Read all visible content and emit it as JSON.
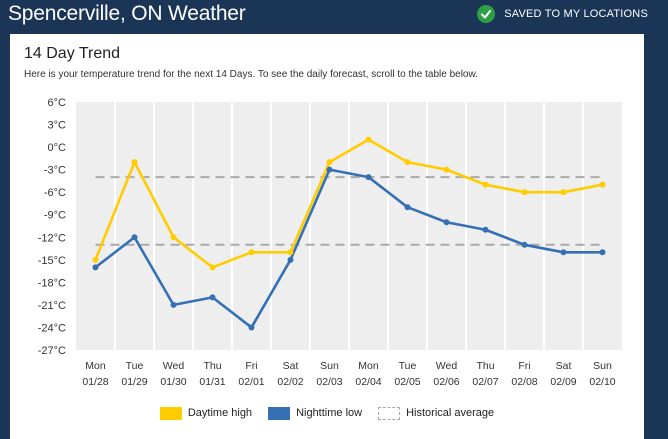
{
  "header": {
    "title": "Spencerville, ON Weather",
    "saved_label": "SAVED TO MY LOCATIONS"
  },
  "card": {
    "title": "14 Day Trend",
    "subtitle": "Here is your temperature trend for the next 14 Days. To see the daily forecast, scroll to the table below."
  },
  "colors": {
    "header_bg": "#1b3556",
    "daytime": "#ffcc00",
    "nighttime": "#3670b4",
    "historical": "#aaaaaa",
    "plot_bg": "#eeeeee",
    "check": "#2e9e44"
  },
  "chart_data": {
    "type": "line",
    "ylim": [
      -27,
      6
    ],
    "yticks": [
      "6°C",
      "3°C",
      "0°C",
      "-3°C",
      "-6°C",
      "-9°C",
      "-12°C",
      "-15°C",
      "-18°C",
      "-21°C",
      "-24°C",
      "-27°C"
    ],
    "ytick_values": [
      6,
      3,
      0,
      -3,
      -6,
      -9,
      -12,
      -15,
      -18,
      -21,
      -24,
      -27
    ],
    "days": [
      "Mon",
      "Tue",
      "Wed",
      "Thu",
      "Fri",
      "Sat",
      "Sun",
      "Mon",
      "Tue",
      "Wed",
      "Thu",
      "Fri",
      "Sat",
      "Sun"
    ],
    "dates": [
      "01/28",
      "01/29",
      "01/30",
      "01/31",
      "02/01",
      "02/02",
      "02/03",
      "02/04",
      "02/05",
      "02/06",
      "02/07",
      "02/08",
      "02/09",
      "02/10"
    ],
    "series": [
      {
        "name": "Daytime high",
        "values": [
          -15,
          -2,
          -12,
          -16,
          -14,
          -14,
          -2,
          1,
          -2,
          -3,
          -5,
          -6,
          -6,
          -5
        ]
      },
      {
        "name": "Nighttime low",
        "values": [
          -16,
          -12,
          -21,
          -20,
          -24,
          -15,
          -3,
          -4,
          -8,
          -10,
          -11,
          -13,
          -14,
          -14
        ]
      }
    ],
    "historical_average": {
      "name": "Historical average",
      "high": -4,
      "low": -13
    },
    "grid": true,
    "legend_position": "bottom-center"
  }
}
